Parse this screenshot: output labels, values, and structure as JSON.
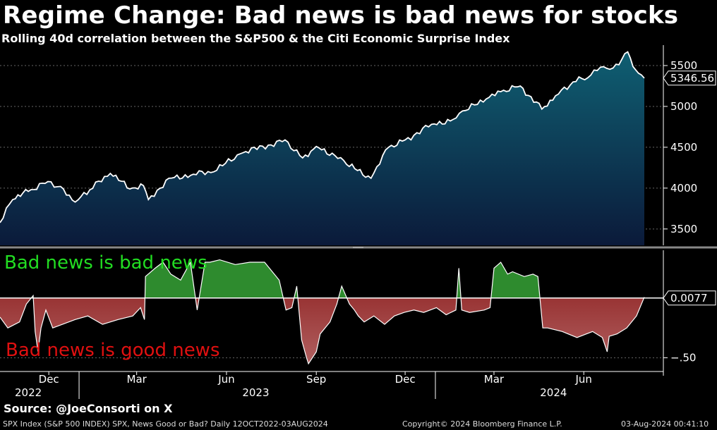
{
  "title": "Regime Change: Bad news is bad news for stocks",
  "subtitle": "Rolling 40d correlation between the S&P500 & the Citi Economic Surprise Index",
  "source": "Source: @JoeConsorti on X",
  "footer": {
    "left": "SPX Index (S&P 500 INDEX) SPX, News Good or Bad?  Daily 12OCT2022-03AUG2024",
    "center": "Copyright© 2024 Bloomberg Finance L.P.",
    "right": "03-Aug-2024 00:41:10"
  },
  "colors": {
    "positive": "#2e8b2e",
    "negative": "#8b1a1a",
    "area_top": "#0f5f72",
    "area_bottom": "#0b1a3a",
    "line": "#ffffff"
  },
  "chart_data": [
    {
      "type": "area",
      "ylim": [
        3300,
        5750
      ],
      "yticks": [
        3500,
        4000,
        4500,
        5000,
        5500
      ],
      "last_value_label": "5346.56",
      "x": [
        "2022-10-12",
        "2022-10-25",
        "2022-11-10",
        "2022-11-30",
        "2022-12-13",
        "2022-12-28",
        "2023-01-12",
        "2023-02-02",
        "2023-02-22",
        "2023-03-08",
        "2023-03-13",
        "2023-04-03",
        "2023-04-28",
        "2023-05-19",
        "2023-06-15",
        "2023-07-31",
        "2023-08-18",
        "2023-09-01",
        "2023-09-20",
        "2023-10-02",
        "2023-10-27",
        "2023-11-14",
        "2023-12-01",
        "2023-12-28",
        "2024-01-19",
        "2024-02-01",
        "2024-02-22",
        "2024-03-08",
        "2024-03-28",
        "2024-04-19",
        "2024-05-03",
        "2024-05-21",
        "2024-06-05",
        "2024-06-18",
        "2024-07-01",
        "2024-07-16",
        "2024-07-24",
        "2024-08-02"
      ],
      "values": [
        3577,
        3860,
        3960,
        4080,
        4020,
        3830,
        3980,
        4180,
        3990,
        4030,
        3860,
        4120,
        4170,
        4200,
        4420,
        4590,
        4370,
        4510,
        4400,
        4290,
        4120,
        4500,
        4590,
        4780,
        4840,
        4950,
        5090,
        5180,
        5250,
        4967,
        5130,
        5300,
        5350,
        5480,
        5470,
        5667,
        5450,
        5346.56
      ]
    },
    {
      "type": "area",
      "ylim": [
        -0.65,
        0.4
      ],
      "yticks": [
        -0.5
      ],
      "last_value_label": "0.0077",
      "annotations": {
        "positive": "Bad news is bad news",
        "negative": "Bad news is good news"
      },
      "x": [
        "2022-10-12",
        "2022-10-20",
        "2022-11-01",
        "2022-11-08",
        "2022-11-15",
        "2022-11-17",
        "2022-11-20",
        "2022-11-23",
        "2022-11-28",
        "2022-12-05",
        "2022-12-15",
        "2022-12-28",
        "2023-01-10",
        "2023-01-25",
        "2023-02-10",
        "2023-02-25",
        "2023-03-05",
        "2023-03-09",
        "2023-03-10",
        "2023-03-20",
        "2023-03-28",
        "2023-04-05",
        "2023-04-15",
        "2023-04-25",
        "2023-05-02",
        "2023-05-10",
        "2023-05-15",
        "2023-05-25",
        "2023-06-10",
        "2023-06-25",
        "2023-07-10",
        "2023-07-25",
        "2023-08-01",
        "2023-08-07",
        "2023-08-12",
        "2023-08-17",
        "2023-08-22",
        "2023-08-24",
        "2023-09-01",
        "2023-09-05",
        "2023-09-15",
        "2023-09-22",
        "2023-09-27",
        "2023-10-05",
        "2023-10-10",
        "2023-10-14",
        "2023-10-20",
        "2023-10-30",
        "2023-11-10",
        "2023-11-20",
        "2023-11-30",
        "2023-12-10",
        "2023-12-20",
        "2024-01-02",
        "2024-01-12",
        "2024-01-22",
        "2024-01-25",
        "2024-01-28",
        "2024-02-05",
        "2024-02-20",
        "2024-02-26",
        "2024-03-01",
        "2024-03-08",
        "2024-03-15",
        "2024-03-20",
        "2024-04-01",
        "2024-04-10",
        "2024-04-15",
        "2024-04-20",
        "2024-04-25",
        "2024-05-10",
        "2024-05-25",
        "2024-06-10",
        "2024-06-20",
        "2024-06-25",
        "2024-06-27",
        "2024-07-05",
        "2024-07-15",
        "2024-07-25",
        "2024-08-02"
      ],
      "values": [
        -0.16,
        -0.25,
        -0.2,
        -0.05,
        0.02,
        -0.28,
        -0.45,
        -0.25,
        -0.1,
        -0.25,
        -0.22,
        -0.18,
        -0.15,
        -0.22,
        -0.18,
        -0.15,
        -0.08,
        -0.18,
        0.18,
        0.25,
        0.3,
        0.2,
        0.15,
        0.3,
        -0.1,
        0.3,
        0.3,
        0.32,
        0.28,
        0.3,
        0.3,
        0.15,
        -0.1,
        -0.08,
        0.1,
        -0.35,
        -0.5,
        -0.55,
        -0.45,
        -0.3,
        -0.2,
        -0.05,
        0.1,
        -0.05,
        -0.1,
        -0.15,
        -0.2,
        -0.15,
        -0.22,
        -0.15,
        -0.12,
        -0.1,
        -0.12,
        -0.08,
        -0.14,
        -0.1,
        0.25,
        -0.1,
        -0.12,
        -0.1,
        -0.08,
        0.25,
        0.3,
        0.2,
        0.22,
        0.18,
        0.2,
        0.18,
        -0.25,
        -0.25,
        -0.28,
        -0.33,
        -0.28,
        -0.33,
        -0.45,
        -0.32,
        -0.3,
        -0.25,
        -0.15,
        0.0077
      ]
    }
  ],
  "x_axis": {
    "months": [
      {
        "label": "Dec",
        "date": "2022-12-01"
      },
      {
        "label": "Mar",
        "date": "2023-03-01"
      },
      {
        "label": "Jun",
        "date": "2023-06-01"
      },
      {
        "label": "Sep",
        "date": "2023-09-01"
      },
      {
        "label": "Dec",
        "date": "2023-12-01"
      },
      {
        "label": "Mar",
        "date": "2024-03-01"
      },
      {
        "label": "Jun",
        "date": "2024-06-01"
      }
    ],
    "years": [
      {
        "label": "2022",
        "date": "2022-11-10"
      },
      {
        "label": "2023",
        "date": "2023-07-01"
      },
      {
        "label": "2024",
        "date": "2024-05-01"
      }
    ],
    "year_dividers": [
      "2023-01-01",
      "2024-01-01"
    ]
  }
}
